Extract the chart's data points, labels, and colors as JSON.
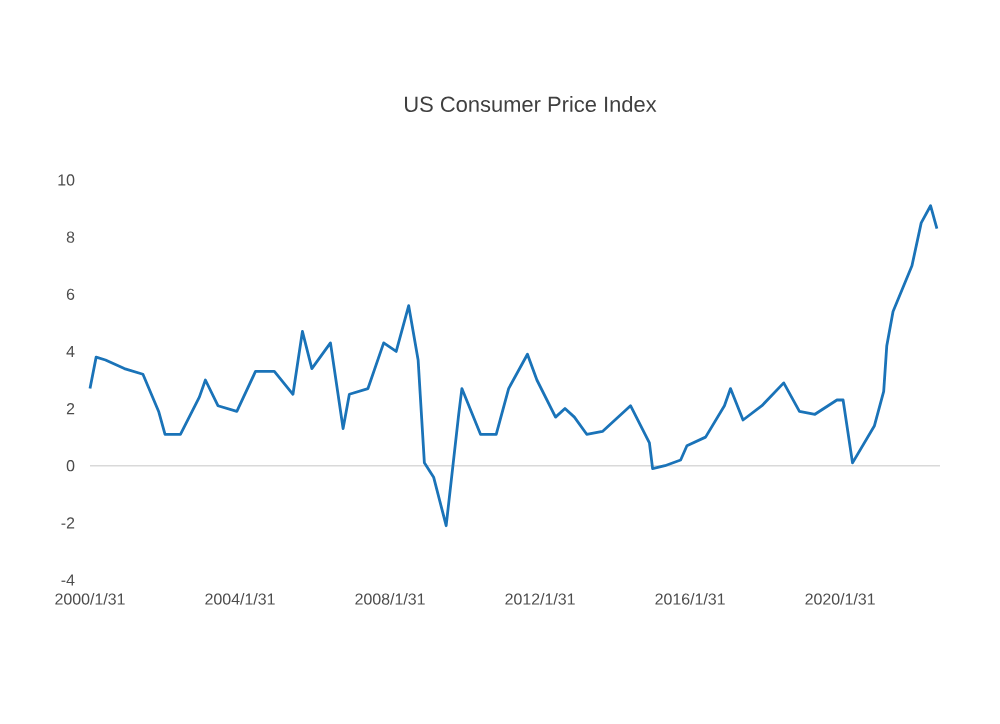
{
  "chart_data": {
    "type": "line",
    "title": "US Consumer Price Index",
    "x": [
      "2000-01-31",
      "2000-03-31",
      "2000-06-30",
      "2000-12-31",
      "2001-06-30",
      "2001-11-30",
      "2002-01-31",
      "2002-06-30",
      "2002-12-31",
      "2003-02-28",
      "2003-06-30",
      "2003-12-31",
      "2004-06-30",
      "2004-12-31",
      "2005-06-30",
      "2005-09-30",
      "2005-12-31",
      "2006-06-30",
      "2006-10-31",
      "2006-12-31",
      "2007-06-30",
      "2007-11-30",
      "2008-03-31",
      "2008-07-31",
      "2008-10-31",
      "2008-12-31",
      "2009-03-31",
      "2009-07-31",
      "2009-11-30",
      "2009-12-31",
      "2010-06-30",
      "2010-11-30",
      "2011-03-31",
      "2011-09-30",
      "2011-12-31",
      "2012-06-30",
      "2012-09-30",
      "2012-12-31",
      "2013-04-30",
      "2013-09-30",
      "2014-06-30",
      "2014-12-31",
      "2015-01-31",
      "2015-05-31",
      "2015-10-31",
      "2015-12-31",
      "2016-06-30",
      "2016-12-31",
      "2017-02-28",
      "2017-06-30",
      "2017-12-31",
      "2018-07-31",
      "2018-12-31",
      "2019-05-31",
      "2019-12-31",
      "2020-02-29",
      "2020-05-31",
      "2020-12-31",
      "2021-03-31",
      "2021-04-30",
      "2021-06-30",
      "2021-12-31",
      "2022-03-31",
      "2022-06-30",
      "2022-08-31"
    ],
    "series": [
      {
        "color": "#1a73b8",
        "values": [
          2.7,
          3.8,
          3.7,
          3.4,
          3.2,
          1.9,
          1.1,
          1.1,
          2.4,
          3.0,
          2.1,
          1.9,
          3.3,
          3.3,
          2.5,
          4.7,
          3.4,
          4.3,
          1.3,
          2.5,
          2.7,
          4.3,
          4.0,
          5.6,
          3.7,
          0.1,
          -0.4,
          -2.1,
          1.8,
          2.7,
          1.1,
          1.1,
          2.7,
          3.9,
          3.0,
          1.7,
          2.0,
          1.7,
          1.1,
          1.2,
          2.1,
          0.8,
          -0.1,
          0.0,
          0.2,
          0.7,
          1.0,
          2.1,
          2.7,
          1.6,
          2.1,
          2.9,
          1.9,
          1.8,
          2.3,
          2.3,
          0.1,
          1.4,
          2.6,
          4.2,
          5.4,
          7.0,
          8.5,
          9.1,
          8.3
        ]
      }
    ],
    "xlim": [
      "2000-01-31",
      "2022-09-30"
    ],
    "xticks": [
      {
        "value": "2000-01-31",
        "label": "2000/1/31"
      },
      {
        "value": "2004-01-31",
        "label": "2004/1/31"
      },
      {
        "value": "2008-01-31",
        "label": "2008/1/31"
      },
      {
        "value": "2012-01-31",
        "label": "2012/1/31"
      },
      {
        "value": "2016-01-31",
        "label": "2016/1/31"
      },
      {
        "value": "2020-01-31",
        "label": "2020/1/31"
      }
    ],
    "ylim": [
      -4,
      10
    ],
    "yticks": [
      -4,
      -2,
      0,
      2,
      4,
      6,
      8,
      10
    ],
    "ref_lines": [
      {
        "axis": "y",
        "value": 0,
        "color": "#d9d9d9"
      }
    ],
    "line_style": "solid",
    "marker": "none"
  }
}
